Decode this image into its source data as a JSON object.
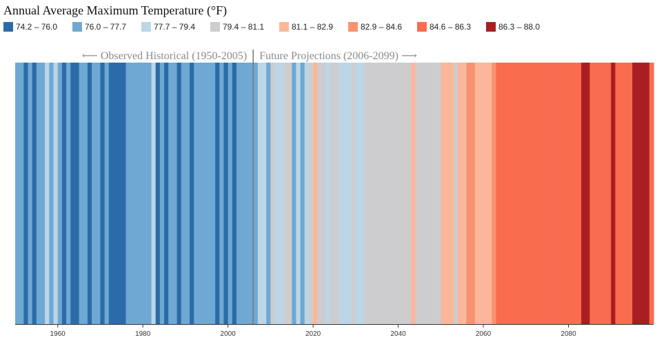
{
  "chart_data": {
    "type": "heatmap",
    "title": "Annual Average Maximum Temperature (°F)",
    "xlabel": "",
    "ylabel": "",
    "xlim": [
      1950,
      2099
    ],
    "x_ticks": [
      "1960",
      "1980",
      "2000",
      "2020",
      "2040",
      "2060",
      "2080"
    ],
    "divider_year": 2006,
    "period_labels": {
      "historical": "⟵ Observed Historical (1950-2005)",
      "future": "Future Projections (2006-2099) ⟶"
    },
    "legend": [
      {
        "label": "74.2 – 76.0",
        "color": "#2b6ca8"
      },
      {
        "label": "76.0 – 77.7",
        "color": "#6fa8d3"
      },
      {
        "label": "77.7 – 79.4",
        "color": "#bcd6e6"
      },
      {
        "label": "79.4 – 81.1",
        "color": "#cdcdd0"
      },
      {
        "label": "81.1 – 82.9",
        "color": "#fbb79b"
      },
      {
        "label": "82.9 – 84.6",
        "color": "#f8936f"
      },
      {
        "label": "84.6 – 86.3",
        "color": "#f96c4f"
      },
      {
        "label": "86.3 – 88.0",
        "color": "#a91f21"
      }
    ],
    "years": [
      1950,
      1951,
      1952,
      1953,
      1954,
      1955,
      1956,
      1957,
      1958,
      1959,
      1960,
      1961,
      1962,
      1963,
      1964,
      1965,
      1966,
      1967,
      1968,
      1969,
      1970,
      1971,
      1972,
      1973,
      1974,
      1975,
      1976,
      1977,
      1978,
      1979,
      1980,
      1981,
      1982,
      1983,
      1984,
      1985,
      1986,
      1987,
      1988,
      1989,
      1990,
      1991,
      1992,
      1993,
      1994,
      1995,
      1996,
      1997,
      1998,
      1999,
      2000,
      2001,
      2002,
      2003,
      2004,
      2005,
      2006,
      2007,
      2008,
      2009,
      2010,
      2011,
      2012,
      2013,
      2014,
      2015,
      2016,
      2017,
      2018,
      2019,
      2020,
      2021,
      2022,
      2023,
      2024,
      2025,
      2026,
      2027,
      2028,
      2029,
      2030,
      2031,
      2032,
      2033,
      2034,
      2035,
      2036,
      2037,
      2038,
      2039,
      2040,
      2041,
      2042,
      2043,
      2044,
      2045,
      2046,
      2047,
      2048,
      2049,
      2050,
      2051,
      2052,
      2053,
      2054,
      2055,
      2056,
      2057,
      2058,
      2059,
      2060,
      2061,
      2062,
      2063,
      2064,
      2065,
      2066,
      2067,
      2068,
      2069,
      2070,
      2071,
      2072,
      2073,
      2074,
      2075,
      2076,
      2077,
      2078,
      2079,
      2080,
      2081,
      2082,
      2083,
      2084,
      2085,
      2086,
      2087,
      2088,
      2089,
      2090,
      2091,
      2092,
      2093,
      2094,
      2095,
      2096,
      2097,
      2098,
      2099
    ],
    "bin_index": [
      1,
      1,
      0,
      1,
      0,
      1,
      1,
      2,
      1,
      2,
      1,
      0,
      1,
      0,
      0,
      1,
      1,
      0,
      1,
      1,
      0,
      1,
      0,
      0,
      0,
      0,
      1,
      1,
      1,
      1,
      1,
      1,
      2,
      0,
      1,
      0,
      1,
      1,
      0,
      1,
      1,
      0,
      1,
      1,
      1,
      1,
      1,
      0,
      1,
      0,
      1,
      0,
      1,
      1,
      1,
      1,
      1,
      2,
      2,
      1,
      3,
      2,
      2,
      3,
      3,
      1,
      2,
      1,
      2,
      3,
      4,
      3,
      3,
      2,
      3,
      3,
      2,
      2,
      2,
      3,
      2,
      2,
      3,
      3,
      3,
      3,
      3,
      3,
      3,
      3,
      3,
      3,
      3,
      4,
      3,
      3,
      3,
      3,
      3,
      3,
      4,
      4,
      4,
      3,
      4,
      4,
      5,
      5,
      4,
      4,
      4,
      4,
      5,
      6,
      6,
      6,
      6,
      6,
      6,
      6,
      6,
      6,
      6,
      6,
      6,
      6,
      6,
      6,
      6,
      6,
      6,
      6,
      6,
      7,
      7,
      6,
      6,
      6,
      6,
      6,
      7,
      6,
      6,
      6,
      6,
      7,
      7,
      7,
      7,
      6
    ]
  }
}
